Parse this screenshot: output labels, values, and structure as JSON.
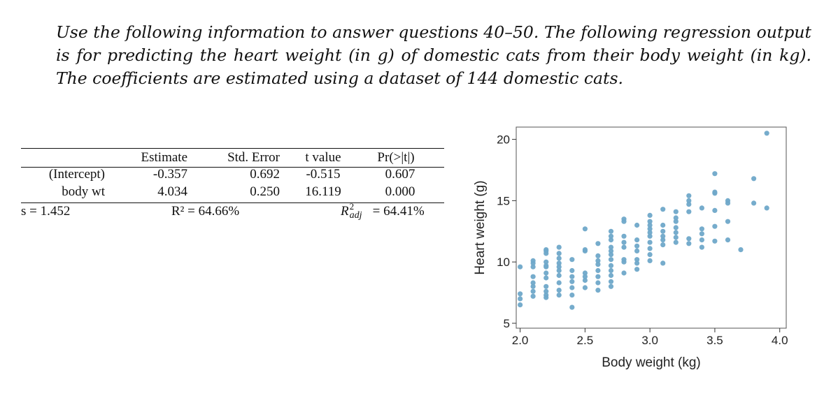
{
  "intro": {
    "text": "Use the following information to answer questions 40–50. The following regression output is for predicting the heart weight (in g) of domestic cats from their body weight (in kg). The coefficients are estimated using a dataset of 144 domestic cats."
  },
  "regression": {
    "headers": [
      "Estimate",
      "Std. Error",
      "t value",
      "Pr(>|t|)"
    ],
    "rows": [
      {
        "label": "(Intercept)",
        "estimate": "-0.357",
        "std_error": "0.692",
        "t_value": "-0.515",
        "p_value": "0.607"
      },
      {
        "label": "body wt",
        "estimate": "4.034",
        "std_error": "0.250",
        "t_value": "16.119",
        "p_value": "0.000"
      }
    ],
    "summary": {
      "s": "s = 1.452",
      "r2": "R² = 64.66%",
      "r2adj_lhs": "R",
      "r2adj_sup": "2",
      "r2adj_sub": "adj",
      "r2adj_rhs": "= 64.41%"
    }
  },
  "chart_data": {
    "type": "scatter",
    "xlabel": "Body weight (kg)",
    "ylabel": "Heart weight (g)",
    "xlim": [
      1.97,
      4.05
    ],
    "ylim": [
      4.6,
      21.0
    ],
    "xticks": [
      2.0,
      2.5,
      3.0,
      3.5,
      4.0
    ],
    "xtick_labels": [
      "2.0",
      "2.5",
      "3.0",
      "3.5",
      "4.0"
    ],
    "yticks": [
      5,
      10,
      15,
      20
    ],
    "ytick_labels": [
      "5",
      "10",
      "15",
      "20"
    ],
    "point_color": "#6FA8C9",
    "points": [
      [
        2.0,
        6.5
      ],
      [
        2.0,
        7.0
      ],
      [
        2.0,
        7.4
      ],
      [
        2.0,
        9.6
      ],
      [
        2.1,
        7.2
      ],
      [
        2.1,
        7.6
      ],
      [
        2.1,
        8.0
      ],
      [
        2.1,
        8.3
      ],
      [
        2.1,
        8.8
      ],
      [
        2.1,
        9.6
      ],
      [
        2.1,
        9.9
      ],
      [
        2.1,
        10.1
      ],
      [
        2.2,
        7.1
      ],
      [
        2.2,
        7.3
      ],
      [
        2.2,
        7.6
      ],
      [
        2.2,
        8.0
      ],
      [
        2.2,
        8.7
      ],
      [
        2.2,
        9.1
      ],
      [
        2.2,
        9.6
      ],
      [
        2.2,
        9.7
      ],
      [
        2.2,
        10.0
      ],
      [
        2.2,
        10.7
      ],
      [
        2.2,
        10.9
      ],
      [
        2.2,
        11.0
      ],
      [
        2.3,
        7.3
      ],
      [
        2.3,
        7.7
      ],
      [
        2.3,
        8.3
      ],
      [
        2.3,
        8.9
      ],
      [
        2.3,
        9.3
      ],
      [
        2.3,
        9.6
      ],
      [
        2.3,
        9.9
      ],
      [
        2.3,
        10.3
      ],
      [
        2.3,
        10.7
      ],
      [
        2.3,
        11.2
      ],
      [
        2.4,
        6.3
      ],
      [
        2.4,
        7.3
      ],
      [
        2.4,
        7.9
      ],
      [
        2.4,
        8.4
      ],
      [
        2.4,
        8.8
      ],
      [
        2.4,
        9.3
      ],
      [
        2.4,
        10.2
      ],
      [
        2.5,
        7.9
      ],
      [
        2.5,
        8.5
      ],
      [
        2.5,
        8.8
      ],
      [
        2.5,
        9.1
      ],
      [
        2.5,
        10.9
      ],
      [
        2.5,
        11.0
      ],
      [
        2.5,
        12.7
      ],
      [
        2.6,
        7.7
      ],
      [
        2.6,
        8.3
      ],
      [
        2.6,
        8.8
      ],
      [
        2.6,
        9.3
      ],
      [
        2.6,
        9.8
      ],
      [
        2.6,
        10.1
      ],
      [
        2.6,
        10.5
      ],
      [
        2.6,
        11.5
      ],
      [
        2.7,
        8.0
      ],
      [
        2.7,
        8.4
      ],
      [
        2.7,
        8.9
      ],
      [
        2.7,
        9.3
      ],
      [
        2.7,
        9.7
      ],
      [
        2.7,
        10.2
      ],
      [
        2.7,
        10.6
      ],
      [
        2.7,
        10.9
      ],
      [
        2.7,
        11.2
      ],
      [
        2.7,
        11.8
      ],
      [
        2.7,
        12.1
      ],
      [
        2.7,
        12.5
      ],
      [
        2.8,
        9.1
      ],
      [
        2.8,
        10.0
      ],
      [
        2.8,
        10.2
      ],
      [
        2.8,
        11.2
      ],
      [
        2.8,
        11.6
      ],
      [
        2.8,
        12.1
      ],
      [
        2.8,
        13.3
      ],
      [
        2.8,
        13.5
      ],
      [
        2.9,
        9.4
      ],
      [
        2.9,
        9.9
      ],
      [
        2.9,
        10.2
      ],
      [
        2.9,
        10.9
      ],
      [
        2.9,
        11.3
      ],
      [
        2.9,
        11.8
      ],
      [
        2.9,
        13.0
      ],
      [
        3.0,
        10.1
      ],
      [
        3.0,
        10.6
      ],
      [
        3.0,
        11.1
      ],
      [
        3.0,
        11.6
      ],
      [
        3.0,
        12.1
      ],
      [
        3.0,
        12.4
      ],
      [
        3.0,
        12.7
      ],
      [
        3.0,
        13.0
      ],
      [
        3.0,
        13.3
      ],
      [
        3.0,
        13.8
      ],
      [
        3.1,
        9.9
      ],
      [
        3.1,
        11.4
      ],
      [
        3.1,
        11.8
      ],
      [
        3.1,
        12.1
      ],
      [
        3.1,
        12.5
      ],
      [
        3.1,
        13.0
      ],
      [
        3.1,
        14.3
      ],
      [
        3.2,
        11.6
      ],
      [
        3.2,
        12.0
      ],
      [
        3.2,
        12.4
      ],
      [
        3.2,
        12.8
      ],
      [
        3.2,
        13.3
      ],
      [
        3.2,
        13.6
      ],
      [
        3.2,
        14.1
      ],
      [
        3.3,
        11.5
      ],
      [
        3.3,
        11.9
      ],
      [
        3.3,
        14.1
      ],
      [
        3.3,
        14.7
      ],
      [
        3.3,
        15.0
      ],
      [
        3.3,
        15.4
      ],
      [
        3.4,
        11.2
      ],
      [
        3.4,
        11.8
      ],
      [
        3.4,
        12.3
      ],
      [
        3.4,
        12.7
      ],
      [
        3.4,
        14.4
      ],
      [
        3.5,
        11.7
      ],
      [
        3.5,
        12.9
      ],
      [
        3.5,
        14.2
      ],
      [
        3.5,
        15.6
      ],
      [
        3.5,
        15.7
      ],
      [
        3.5,
        17.2
      ],
      [
        3.6,
        11.8
      ],
      [
        3.6,
        13.3
      ],
      [
        3.6,
        14.8
      ],
      [
        3.6,
        15.0
      ],
      [
        3.7,
        11.0
      ],
      [
        3.8,
        14.8
      ],
      [
        3.8,
        16.8
      ],
      [
        3.9,
        14.4
      ],
      [
        3.9,
        20.5
      ]
    ]
  }
}
